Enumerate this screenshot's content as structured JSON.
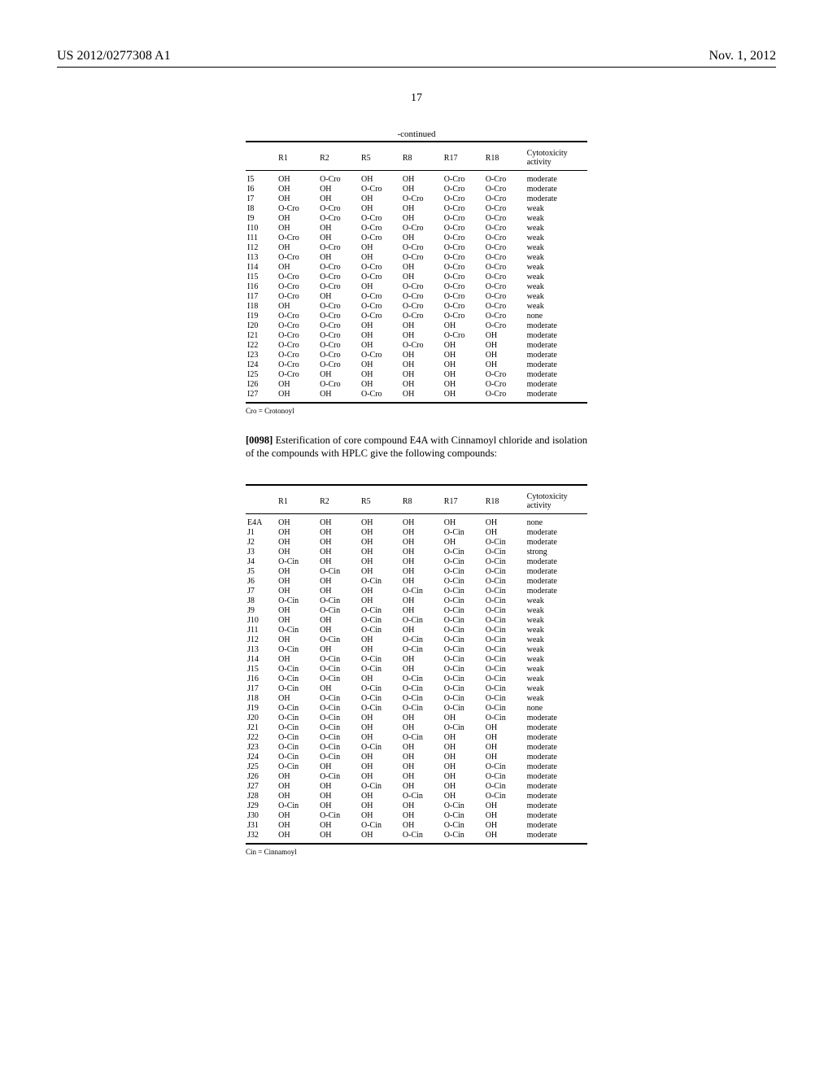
{
  "header": {
    "left": "US 2012/0277308 A1",
    "right": "Nov. 1, 2012"
  },
  "page_number": "17",
  "table1": {
    "caption": "-continued",
    "columns": [
      "",
      "R1",
      "R2",
      "R5",
      "R8",
      "R17",
      "R18",
      "Cytotoxicity activity"
    ],
    "rows": [
      [
        "I5",
        "OH",
        "O-Cro",
        "OH",
        "OH",
        "O-Cro",
        "O-Cro",
        "moderate"
      ],
      [
        "I6",
        "OH",
        "OH",
        "O-Cro",
        "OH",
        "O-Cro",
        "O-Cro",
        "moderate"
      ],
      [
        "I7",
        "OH",
        "OH",
        "OH",
        "O-Cro",
        "O-Cro",
        "O-Cro",
        "moderate"
      ],
      [
        "I8",
        "O-Cro",
        "O-Cro",
        "OH",
        "OH",
        "O-Cro",
        "O-Cro",
        "weak"
      ],
      [
        "I9",
        "OH",
        "O-Cro",
        "O-Cro",
        "OH",
        "O-Cro",
        "O-Cro",
        "weak"
      ],
      [
        "I10",
        "OH",
        "OH",
        "O-Cro",
        "O-Cro",
        "O-Cro",
        "O-Cro",
        "weak"
      ],
      [
        "I11",
        "O-Cro",
        "OH",
        "O-Cro",
        "OH",
        "O-Cro",
        "O-Cro",
        "weak"
      ],
      [
        "I12",
        "OH",
        "O-Cro",
        "OH",
        "O-Cro",
        "O-Cro",
        "O-Cro",
        "weak"
      ],
      [
        "I13",
        "O-Cro",
        "OH",
        "OH",
        "O-Cro",
        "O-Cro",
        "O-Cro",
        "weak"
      ],
      [
        "I14",
        "OH",
        "O-Cro",
        "O-Cro",
        "OH",
        "O-Cro",
        "O-Cro",
        "weak"
      ],
      [
        "I15",
        "O-Cro",
        "O-Cro",
        "O-Cro",
        "OH",
        "O-Cro",
        "O-Cro",
        "weak"
      ],
      [
        "I16",
        "O-Cro",
        "O-Cro",
        "OH",
        "O-Cro",
        "O-Cro",
        "O-Cro",
        "weak"
      ],
      [
        "I17",
        "O-Cro",
        "OH",
        "O-Cro",
        "O-Cro",
        "O-Cro",
        "O-Cro",
        "weak"
      ],
      [
        "I18",
        "OH",
        "O-Cro",
        "O-Cro",
        "O-Cro",
        "O-Cro",
        "O-Cro",
        "weak"
      ],
      [
        "I19",
        "O-Cro",
        "O-Cro",
        "O-Cro",
        "O-Cro",
        "O-Cro",
        "O-Cro",
        "none"
      ],
      [
        "I20",
        "O-Cro",
        "O-Cro",
        "OH",
        "OH",
        "OH",
        "O-Cro",
        "moderate"
      ],
      [
        "I21",
        "O-Cro",
        "O-Cro",
        "OH",
        "OH",
        "O-Cro",
        "OH",
        "moderate"
      ],
      [
        "I22",
        "O-Cro",
        "O-Cro",
        "OH",
        "O-Cro",
        "OH",
        "OH",
        "moderate"
      ],
      [
        "I23",
        "O-Cro",
        "O-Cro",
        "O-Cro",
        "OH",
        "OH",
        "OH",
        "moderate"
      ],
      [
        "I24",
        "O-Cro",
        "O-Cro",
        "OH",
        "OH",
        "OH",
        "OH",
        "moderate"
      ],
      [
        "I25",
        "O-Cro",
        "OH",
        "OH",
        "OH",
        "OH",
        "O-Cro",
        "moderate"
      ],
      [
        "I26",
        "OH",
        "O-Cro",
        "OH",
        "OH",
        "OH",
        "O-Cro",
        "moderate"
      ],
      [
        "I27",
        "OH",
        "OH",
        "O-Cro",
        "OH",
        "OH",
        "O-Cro",
        "moderate"
      ]
    ],
    "footnote": "Cro = Crotonoyl"
  },
  "paragraph": {
    "num": "[0098]",
    "text": "Esterification of core compound E4A with Cinnamoyl chloride and isolation of the compounds with HPLC give the following compounds:"
  },
  "table2": {
    "columns": [
      "",
      "R1",
      "R2",
      "R5",
      "R8",
      "R17",
      "R18",
      "Cytotoxicity activity"
    ],
    "rows": [
      [
        "E4A",
        "OH",
        "OH",
        "OH",
        "OH",
        "OH",
        "OH",
        "none"
      ],
      [
        "J1",
        "OH",
        "OH",
        "OH",
        "OH",
        "O-Cin",
        "OH",
        "moderate"
      ],
      [
        "J2",
        "OH",
        "OH",
        "OH",
        "OH",
        "OH",
        "O-Cin",
        "moderate"
      ],
      [
        "J3",
        "OH",
        "OH",
        "OH",
        "OH",
        "O-Cin",
        "O-Cin",
        "strong"
      ],
      [
        "J4",
        "O-Cin",
        "OH",
        "OH",
        "OH",
        "O-Cin",
        "O-Cin",
        "moderate"
      ],
      [
        "J5",
        "OH",
        "O-Cin",
        "OH",
        "OH",
        "O-Cin",
        "O-Cin",
        "moderate"
      ],
      [
        "J6",
        "OH",
        "OH",
        "O-Cin",
        "OH",
        "O-Cin",
        "O-Cin",
        "moderate"
      ],
      [
        "J7",
        "OH",
        "OH",
        "OH",
        "O-Cin",
        "O-Cin",
        "O-Cin",
        "moderate"
      ],
      [
        "J8",
        "O-Cin",
        "O-Cin",
        "OH",
        "OH",
        "O-Cin",
        "O-Cin",
        "weak"
      ],
      [
        "J9",
        "OH",
        "O-Cin",
        "O-Cin",
        "OH",
        "O-Cin",
        "O-Cin",
        "weak"
      ],
      [
        "J10",
        "OH",
        "OH",
        "O-Cin",
        "O-Cin",
        "O-Cin",
        "O-Cin",
        "weak"
      ],
      [
        "J11",
        "O-Cin",
        "OH",
        "O-Cin",
        "OH",
        "O-Cin",
        "O-Cin",
        "weak"
      ],
      [
        "J12",
        "OH",
        "O-Cin",
        "OH",
        "O-Cin",
        "O-Cin",
        "O-Cin",
        "weak"
      ],
      [
        "J13",
        "O-Cin",
        "OH",
        "OH",
        "O-Cin",
        "O-Cin",
        "O-Cin",
        "weak"
      ],
      [
        "J14",
        "OH",
        "O-Cin",
        "O-Cin",
        "OH",
        "O-Cin",
        "O-Cin",
        "weak"
      ],
      [
        "J15",
        "O-Cin",
        "O-Cin",
        "O-Cin",
        "OH",
        "O-Cin",
        "O-Cin",
        "weak"
      ],
      [
        "J16",
        "O-Cin",
        "O-Cin",
        "OH",
        "O-Cin",
        "O-Cin",
        "O-Cin",
        "weak"
      ],
      [
        "J17",
        "O-Cin",
        "OH",
        "O-Cin",
        "O-Cin",
        "O-Cin",
        "O-Cin",
        "weak"
      ],
      [
        "J18",
        "OH",
        "O-Cin",
        "O-Cin",
        "O-Cin",
        "O-Cin",
        "O-Cin",
        "weak"
      ],
      [
        "J19",
        "O-Cin",
        "O-Cin",
        "O-Cin",
        "O-Cin",
        "O-Cin",
        "O-Cin",
        "none"
      ],
      [
        "J20",
        "O-Cin",
        "O-Cin",
        "OH",
        "OH",
        "OH",
        "O-Cin",
        "moderate"
      ],
      [
        "J21",
        "O-Cin",
        "O-Cin",
        "OH",
        "OH",
        "O-Cin",
        "OH",
        "moderate"
      ],
      [
        "J22",
        "O-Cin",
        "O-Cin",
        "OH",
        "O-Cin",
        "OH",
        "OH",
        "moderate"
      ],
      [
        "J23",
        "O-Cin",
        "O-Cin",
        "O-Cin",
        "OH",
        "OH",
        "OH",
        "moderate"
      ],
      [
        "J24",
        "O-Cin",
        "O-Cin",
        "OH",
        "OH",
        "OH",
        "OH",
        "moderate"
      ],
      [
        "J25",
        "O-Cin",
        "OH",
        "OH",
        "OH",
        "OH",
        "O-Cin",
        "moderate"
      ],
      [
        "J26",
        "OH",
        "O-Cin",
        "OH",
        "OH",
        "OH",
        "O-Cin",
        "moderate"
      ],
      [
        "J27",
        "OH",
        "OH",
        "O-Cin",
        "OH",
        "OH",
        "O-Cin",
        "moderate"
      ],
      [
        "J28",
        "OH",
        "OH",
        "OH",
        "O-Cin",
        "OH",
        "O-Cin",
        "moderate"
      ],
      [
        "J29",
        "O-Cin",
        "OH",
        "OH",
        "OH",
        "O-Cin",
        "OH",
        "moderate"
      ],
      [
        "J30",
        "OH",
        "O-Cin",
        "OH",
        "OH",
        "O-Cin",
        "OH",
        "moderate"
      ],
      [
        "J31",
        "OH",
        "OH",
        "O-Cin",
        "OH",
        "O-Cin",
        "OH",
        "moderate"
      ],
      [
        "J32",
        "OH",
        "OH",
        "OH",
        "O-Cin",
        "O-Cin",
        "OH",
        "moderate"
      ]
    ],
    "footnote": "Cin = Cinnamoyl"
  }
}
